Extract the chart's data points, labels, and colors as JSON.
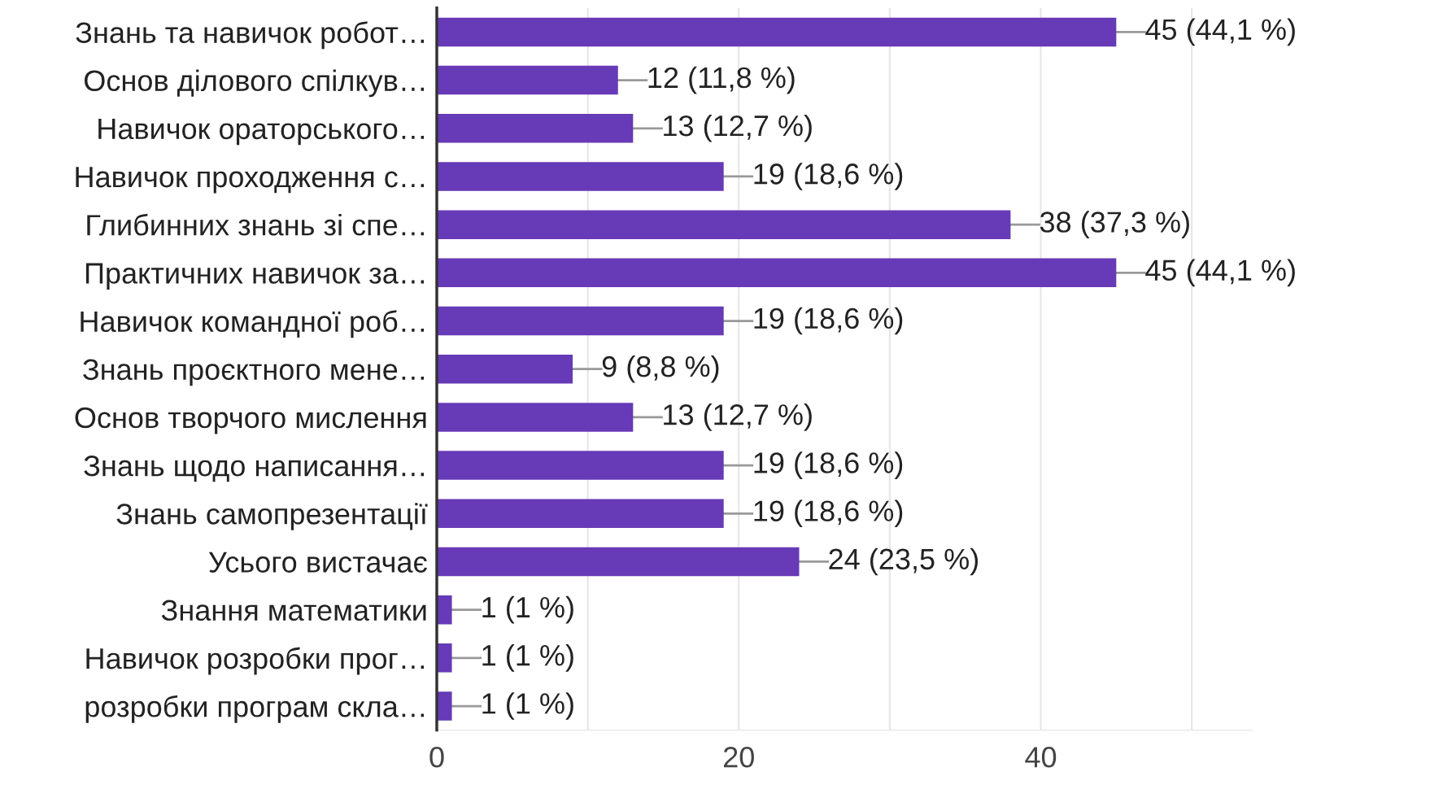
{
  "chart_data": {
    "type": "bar",
    "orientation": "horizontal",
    "categories": [
      "Знань та навичок робот…",
      "Основ ділового спілкув…",
      "Навичок ораторського…",
      "Навичок проходження с…",
      "Глибинних знань зі спе…",
      "Практичних навичок за…",
      "Навичок командної роб…",
      "Знань проєктного мене…",
      "Основ творчого мислення",
      "Знань щодо написання…",
      "Знань самопрезентації",
      "Усього вистачає",
      "Знання математики",
      "Навичок розробки прог…",
      "розробки програм скла…"
    ],
    "values": [
      45,
      12,
      13,
      19,
      38,
      45,
      19,
      9,
      13,
      19,
      19,
      24,
      1,
      1,
      1
    ],
    "value_labels": [
      "45 (44,1 %)",
      "12 (11,8 %)",
      "13 (12,7 %)",
      "19 (18,6 %)",
      "38 (37,3 %)",
      "45 (44,1 %)",
      "19 (18,6 %)",
      "9 (8,8 %)",
      "13 (12,7 %)",
      "19 (18,6 %)",
      "19 (18,6 %)",
      "24 (23,5 %)",
      "1 (1 %)",
      "1 (1 %)",
      "1 (1 %)"
    ],
    "color": "#673ab7",
    "xlim": [
      0,
      54
    ],
    "xticks": [
      0,
      {
        "value": 10,
        "label": null
      },
      20,
      {
        "value": 30,
        "label": null
      },
      40,
      {
        "value": 50,
        "label": null
      }
    ],
    "grid": "x"
  }
}
